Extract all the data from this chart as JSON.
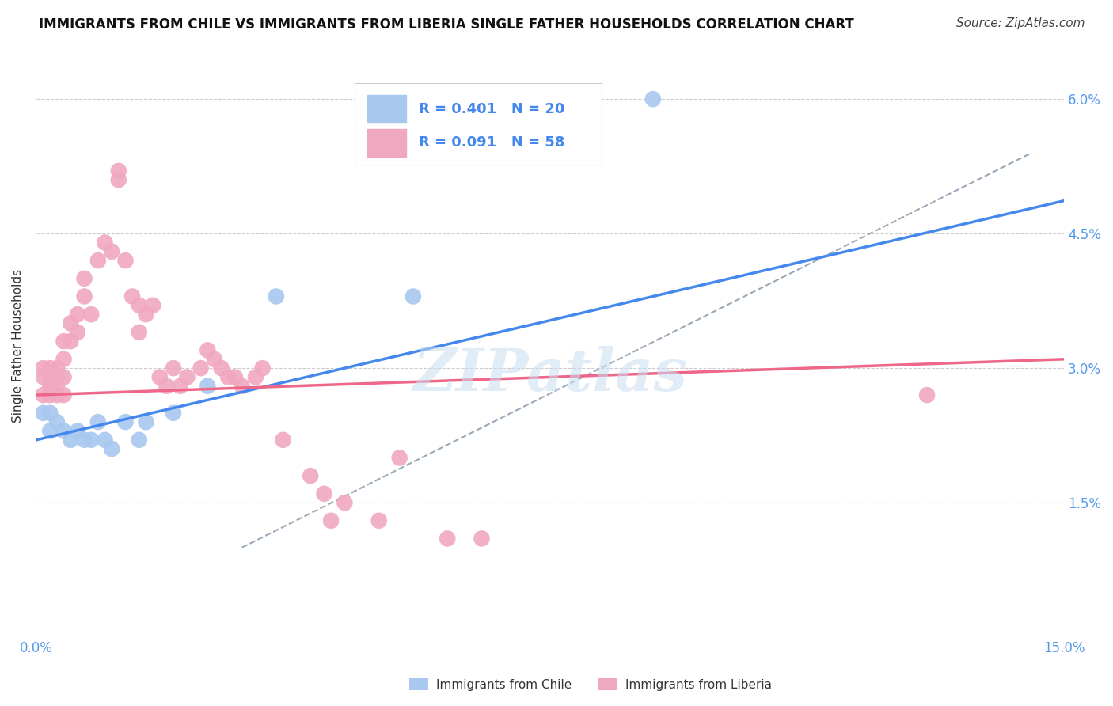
{
  "title": "IMMIGRANTS FROM CHILE VS IMMIGRANTS FROM LIBERIA SINGLE FATHER HOUSEHOLDS CORRELATION CHART",
  "source_text": "Source: ZipAtlas.com",
  "ylabel": "Single Father Households",
  "xmin": 0.0,
  "xmax": 0.15,
  "ymin": 0.0,
  "ymax": 0.065,
  "yticks": [
    0.015,
    0.03,
    0.045,
    0.06
  ],
  "ytick_labels": [
    "1.5%",
    "3.0%",
    "4.5%",
    "6.0%"
  ],
  "grid_color": "#cccccc",
  "background_color": "#ffffff",
  "chile_color": "#a8c8f0",
  "liberia_color": "#f0a8c0",
  "chile_line_color": "#4488ee",
  "liberia_line_color": "#ee6688",
  "conf_line_color": "#99aabb",
  "chile_R": 0.401,
  "chile_N": 20,
  "liberia_R": 0.091,
  "liberia_N": 58,
  "watermark": "ZIPatlas",
  "watermark_color": "#c8ddf0",
  "chile_points": [
    [
      0.001,
      0.025
    ],
    [
      0.002,
      0.025
    ],
    [
      0.002,
      0.023
    ],
    [
      0.003,
      0.024
    ],
    [
      0.004,
      0.023
    ],
    [
      0.005,
      0.022
    ],
    [
      0.006,
      0.023
    ],
    [
      0.007,
      0.022
    ],
    [
      0.008,
      0.022
    ],
    [
      0.009,
      0.024
    ],
    [
      0.01,
      0.022
    ],
    [
      0.011,
      0.021
    ],
    [
      0.013,
      0.024
    ],
    [
      0.015,
      0.022
    ],
    [
      0.016,
      0.024
    ],
    [
      0.02,
      0.025
    ],
    [
      0.025,
      0.028
    ],
    [
      0.035,
      0.038
    ],
    [
      0.055,
      0.038
    ],
    [
      0.09,
      0.06
    ]
  ],
  "liberia_points": [
    [
      0.001,
      0.03
    ],
    [
      0.001,
      0.029
    ],
    [
      0.001,
      0.027
    ],
    [
      0.002,
      0.028
    ],
    [
      0.002,
      0.03
    ],
    [
      0.002,
      0.027
    ],
    [
      0.002,
      0.028
    ],
    [
      0.002,
      0.029
    ],
    [
      0.003,
      0.028
    ],
    [
      0.003,
      0.029
    ],
    [
      0.003,
      0.03
    ],
    [
      0.003,
      0.027
    ],
    [
      0.004,
      0.031
    ],
    [
      0.004,
      0.033
    ],
    [
      0.004,
      0.029
    ],
    [
      0.004,
      0.027
    ],
    [
      0.005,
      0.035
    ],
    [
      0.005,
      0.033
    ],
    [
      0.006,
      0.036
    ],
    [
      0.006,
      0.034
    ],
    [
      0.007,
      0.038
    ],
    [
      0.007,
      0.04
    ],
    [
      0.008,
      0.036
    ],
    [
      0.009,
      0.042
    ],
    [
      0.01,
      0.044
    ],
    [
      0.011,
      0.043
    ],
    [
      0.012,
      0.051
    ],
    [
      0.012,
      0.052
    ],
    [
      0.013,
      0.042
    ],
    [
      0.014,
      0.038
    ],
    [
      0.015,
      0.037
    ],
    [
      0.015,
      0.034
    ],
    [
      0.016,
      0.036
    ],
    [
      0.017,
      0.037
    ],
    [
      0.018,
      0.029
    ],
    [
      0.019,
      0.028
    ],
    [
      0.02,
      0.03
    ],
    [
      0.021,
      0.028
    ],
    [
      0.022,
      0.029
    ],
    [
      0.024,
      0.03
    ],
    [
      0.025,
      0.032
    ],
    [
      0.026,
      0.031
    ],
    [
      0.027,
      0.03
    ],
    [
      0.028,
      0.029
    ],
    [
      0.029,
      0.029
    ],
    [
      0.03,
      0.028
    ],
    [
      0.032,
      0.029
    ],
    [
      0.033,
      0.03
    ],
    [
      0.036,
      0.022
    ],
    [
      0.04,
      0.018
    ],
    [
      0.042,
      0.016
    ],
    [
      0.043,
      0.013
    ],
    [
      0.045,
      0.015
    ],
    [
      0.05,
      0.013
    ],
    [
      0.053,
      0.02
    ],
    [
      0.06,
      0.011
    ],
    [
      0.065,
      0.011
    ],
    [
      0.13,
      0.027
    ]
  ]
}
